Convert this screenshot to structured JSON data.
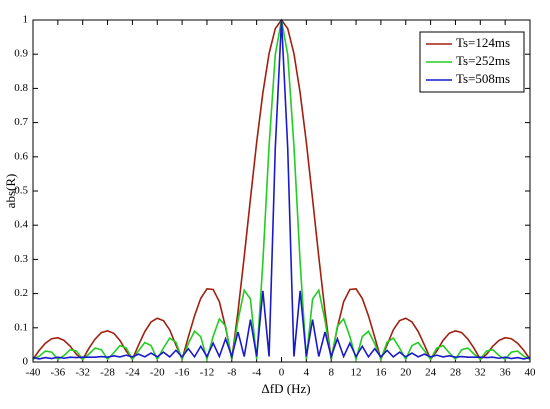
{
  "chart_data": {
    "type": "line",
    "xlabel": "ΔfD (Hz)",
    "ylabel": "abs(R)",
    "x": [
      -40,
      -39,
      -38,
      -37,
      -36,
      -35,
      -34,
      -33,
      -32,
      -31,
      -30,
      -29,
      -28,
      -27,
      -26,
      -25,
      -24,
      -23,
      -22,
      -21,
      -20,
      -19,
      -18,
      -17,
      -16,
      -15,
      -14,
      -13,
      -12,
      -11,
      -10,
      -9,
      -8,
      -7,
      -6,
      -5,
      -4,
      -3,
      -2,
      -1,
      0,
      1,
      2,
      3,
      4,
      5,
      6,
      7,
      8,
      9,
      10,
      11,
      12,
      13,
      14,
      15,
      16,
      17,
      18,
      19,
      20,
      21,
      22,
      23,
      24,
      25,
      26,
      27,
      28,
      29,
      30,
      31,
      32,
      33,
      34,
      35,
      36,
      37,
      38,
      39,
      40
    ],
    "series": [
      {
        "name": "Ts=124ms",
        "color": "#a0200f",
        "values": [
          0.008,
          0.034,
          0.055,
          0.068,
          0.071,
          0.063,
          0.046,
          0.022,
          0.008,
          0.04,
          0.067,
          0.086,
          0.091,
          0.084,
          0.063,
          0.032,
          0.008,
          0.05,
          0.089,
          0.117,
          0.128,
          0.121,
          0.094,
          0.05,
          0.008,
          0.073,
          0.135,
          0.186,
          0.214,
          0.212,
          0.176,
          0.101,
          0.008,
          0.148,
          0.308,
          0.477,
          0.642,
          0.787,
          0.902,
          0.975,
          1,
          0.975,
          0.902,
          0.787,
          0.642,
          0.477,
          0.308,
          0.148,
          0.008,
          0.101,
          0.176,
          0.212,
          0.214,
          0.186,
          0.135,
          0.073,
          0.008,
          0.05,
          0.094,
          0.121,
          0.128,
          0.117,
          0.089,
          0.05,
          0.008,
          0.032,
          0.063,
          0.084,
          0.091,
          0.086,
          0.067,
          0.04,
          0.008,
          0.022,
          0.046,
          0.063,
          0.071,
          0.068,
          0.055,
          0.034,
          0.008
        ]
      },
      {
        "name": "Ts=252ms",
        "color": "#22cc22",
        "values": [
          0.008,
          0.017,
          0.032,
          0.029,
          0.008,
          0.019,
          0.036,
          0.032,
          0.008,
          0.023,
          0.041,
          0.036,
          0.008,
          0.027,
          0.048,
          0.041,
          0.008,
          0.033,
          0.057,
          0.048,
          0.008,
          0.041,
          0.07,
          0.058,
          0.008,
          0.054,
          0.09,
          0.074,
          0.008,
          0.075,
          0.126,
          0.105,
          0.008,
          0.122,
          0.21,
          0.184,
          0.008,
          0.292,
          0.632,
          0.899,
          1,
          0.899,
          0.632,
          0.292,
          0.008,
          0.184,
          0.21,
          0.122,
          0.008,
          0.105,
          0.126,
          0.075,
          0.008,
          0.074,
          0.09,
          0.054,
          0.008,
          0.058,
          0.07,
          0.041,
          0.008,
          0.048,
          0.057,
          0.033,
          0.008,
          0.041,
          0.048,
          0.027,
          0.008,
          0.036,
          0.041,
          0.023,
          0.008,
          0.032,
          0.036,
          0.019,
          0.008,
          0.029,
          0.032,
          0.017,
          0.008
        ]
      },
      {
        "name": "Ts=508ms",
        "color": "#1a1acc",
        "values": [
          0.013,
          0.009,
          0.013,
          0.01,
          0.014,
          0.011,
          0.014,
          0.013,
          0.014,
          0.014,
          0.014,
          0.016,
          0.014,
          0.018,
          0.015,
          0.02,
          0.015,
          0.023,
          0.015,
          0.026,
          0.015,
          0.029,
          0.015,
          0.034,
          0.015,
          0.039,
          0.015,
          0.046,
          0.016,
          0.055,
          0.016,
          0.068,
          0.016,
          0.088,
          0.016,
          0.124,
          0.016,
          0.208,
          0.016,
          0.626,
          1,
          0.626,
          0.016,
          0.208,
          0.016,
          0.124,
          0.016,
          0.088,
          0.016,
          0.068,
          0.016,
          0.055,
          0.016,
          0.046,
          0.015,
          0.039,
          0.015,
          0.034,
          0.015,
          0.029,
          0.015,
          0.026,
          0.015,
          0.023,
          0.015,
          0.02,
          0.015,
          0.018,
          0.014,
          0.016,
          0.014,
          0.014,
          0.014,
          0.013,
          0.014,
          0.011,
          0.014,
          0.01,
          0.013,
          0.009,
          0.013
        ]
      }
    ],
    "xlim": [
      -40,
      40
    ],
    "xticks": [
      -40,
      -36,
      -32,
      -28,
      -24,
      -20,
      -16,
      -12,
      -8,
      -4,
      0,
      4,
      8,
      12,
      16,
      20,
      24,
      28,
      32,
      36,
      40
    ],
    "ylim": [
      0,
      1
    ],
    "yticks": [
      0,
      0.1,
      0.2,
      0.3,
      0.4,
      0.5,
      0.6,
      0.7,
      0.8,
      0.9,
      1
    ],
    "grid": false,
    "legend": "upper right"
  }
}
